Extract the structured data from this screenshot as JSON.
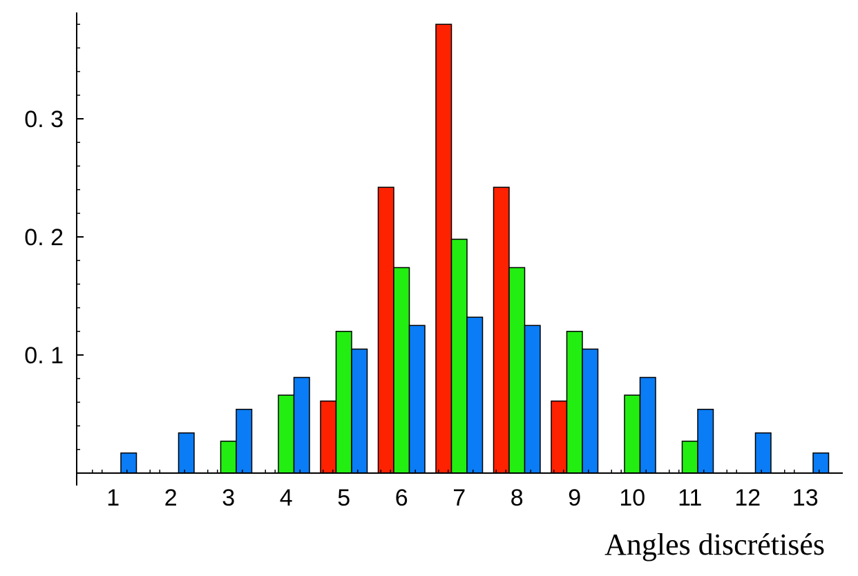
{
  "chart_data": {
    "type": "bar",
    "title": "",
    "xlabel": "Angles discrétisés",
    "ylabel": "",
    "categories": [
      "1",
      "2",
      "3",
      "4",
      "5",
      "6",
      "7",
      "8",
      "9",
      "10",
      "11",
      "12",
      "13"
    ],
    "ylim": [
      0,
      0.39
    ],
    "yticks": [
      0.1,
      0.2,
      0.3
    ],
    "ytick_labels": [
      "0. 1",
      "0. 2",
      "0. 3"
    ],
    "grid": false,
    "legend": "none",
    "series": [
      {
        "color": "#ff2200",
        "values": [
          0,
          0,
          0,
          0,
          0.061,
          0.242,
          0.38,
          0.242,
          0.061,
          0,
          0,
          0,
          0
        ]
      },
      {
        "color": "#22ee11",
        "values": [
          0,
          0,
          0.027,
          0.066,
          0.12,
          0.174,
          0.198,
          0.174,
          0.12,
          0.066,
          0.027,
          0,
          0
        ]
      },
      {
        "color": "#0a7cf5",
        "values": [
          0.017,
          0.034,
          0.054,
          0.081,
          0.105,
          0.125,
          0.132,
          0.125,
          0.105,
          0.081,
          0.054,
          0.034,
          0.017
        ]
      }
    ]
  }
}
